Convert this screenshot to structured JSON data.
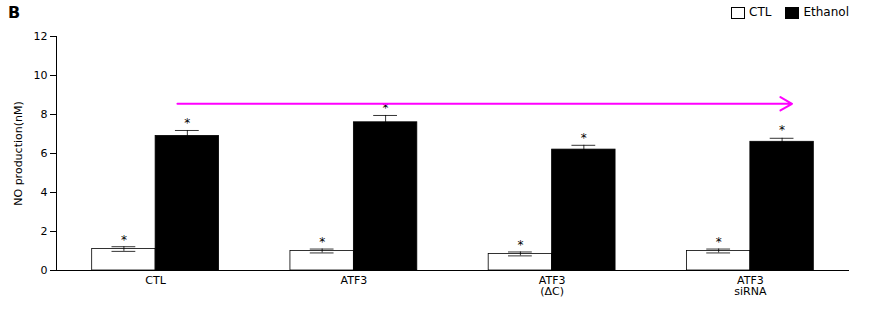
{
  "chart_data": {
    "type": "bar",
    "title": "B",
    "categories": [
      "CTL",
      "ATF3",
      "ATF3\n(ΔC)",
      "ATF3\nsiRNA"
    ],
    "series": [
      {
        "name": "CTL",
        "color": "white",
        "values": [
          1.1,
          1.0,
          0.85,
          1.0
        ],
        "errors": [
          0.12,
          0.1,
          0.1,
          0.1
        ]
      },
      {
        "name": "Ethanol",
        "color": "black",
        "values": [
          6.9,
          7.6,
          6.2,
          6.6
        ],
        "errors": [
          0.28,
          0.35,
          0.22,
          0.18
        ]
      }
    ],
    "ylabel": "NO production(nM)",
    "ylim": [
      0,
      12
    ],
    "yticks": [
      0,
      2,
      4,
      6,
      8,
      10,
      12
    ],
    "legend": "upper right",
    "annotations": [
      {
        "text": "*",
        "category": "CTL",
        "series": "CTL",
        "y": 1.35
      },
      {
        "text": "*",
        "category": "ATF3",
        "series": "CTL",
        "y": 1.25
      },
      {
        "text": "*",
        "category": "ATF3\n(ΔC)",
        "series": "CTL",
        "y": 1.1
      },
      {
        "text": "*",
        "category": "ATF3\nsiRNA",
        "series": "CTL",
        "y": 1.25
      },
      {
        "text": "*",
        "category": "CTL",
        "series": "Ethanol",
        "y": 7.35
      },
      {
        "text": "*",
        "category": "ATF3",
        "series": "Ethanol",
        "y": 8.15
      },
      {
        "text": "*",
        "category": "ATF3\n(ΔC)",
        "series": "Ethanol",
        "y": 6.58
      },
      {
        "text": "*",
        "category": "ATF3\nsiRNA",
        "series": "Ethanol",
        "y": 6.98
      },
      {
        "type": "arrow",
        "from": "CTL",
        "to": "ATF3\nsiRNA",
        "series": "Ethanol",
        "y": 8.55,
        "color": "#FF00FF"
      }
    ]
  }
}
